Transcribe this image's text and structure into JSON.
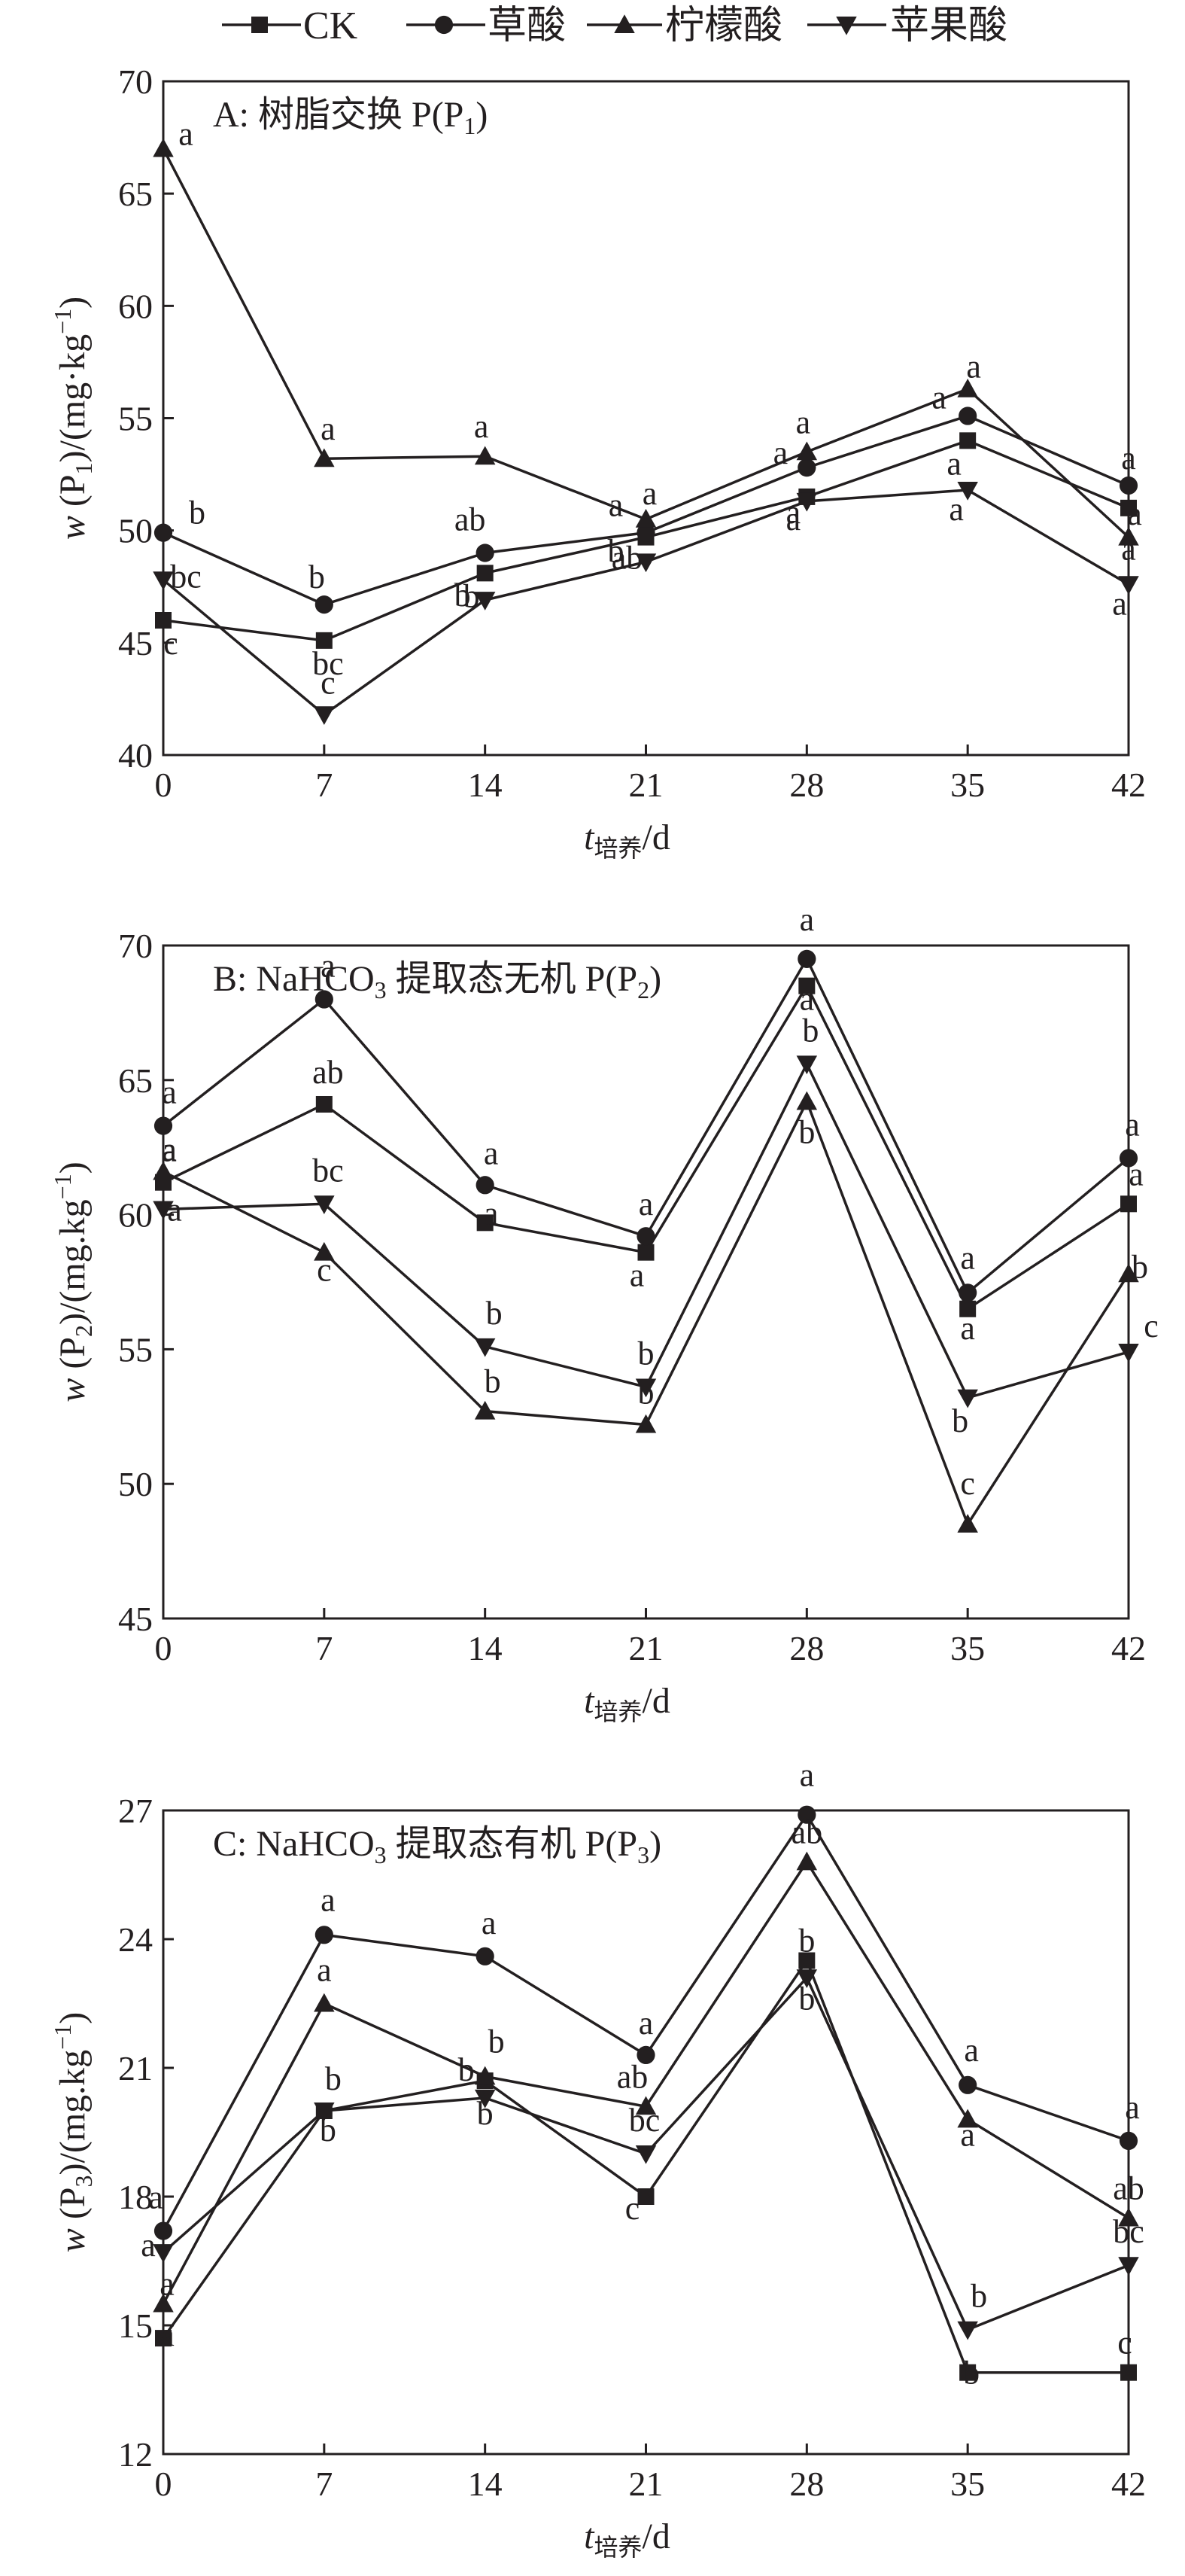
{
  "chart_data": [
    {
      "type": "line",
      "panel_id": "A",
      "title": "A: 树脂交换 P(P",
      "title_sub": "1",
      "title_end": ")",
      "ylabel": {
        "main": "w",
        "open": " (P",
        "sub": "1",
        "mid": ")/(mg·kg",
        "sup": "−1",
        "close": ")"
      },
      "xlabel": {
        "main": "t",
        "sub": "培养",
        "unit": "/d"
      },
      "x": [
        0,
        7,
        14,
        21,
        28,
        35,
        42
      ],
      "xlim": [
        0,
        42
      ],
      "ylim": [
        40,
        70
      ],
      "yticks": [
        40,
        45,
        50,
        55,
        60,
        65,
        70
      ],
      "series": [
        {
          "name": "CK",
          "marker": "square",
          "values": [
            46.0,
            45.1,
            48.1,
            49.7,
            51.5,
            54.0,
            51.0
          ],
          "labels": [
            "c",
            "bc",
            "b",
            "ab",
            "a",
            "a",
            "a"
          ]
        },
        {
          "name": "草酸",
          "marker": "circle",
          "values": [
            49.9,
            46.7,
            49.0,
            49.9,
            52.8,
            55.1,
            52.0
          ],
          "labels": [
            "b",
            "b",
            "ab",
            "a",
            "a",
            "a",
            "a"
          ]
        },
        {
          "name": "柠檬酸",
          "marker": "triangle-up",
          "values": [
            67.0,
            53.2,
            53.3,
            50.5,
            53.5,
            56.3,
            49.7
          ],
          "labels": [
            "a",
            "a",
            "a",
            "a",
            "a",
            "a",
            "a"
          ]
        },
        {
          "name": "苹果酸",
          "marker": "triangle-down",
          "values": [
            47.8,
            41.8,
            46.9,
            48.6,
            51.3,
            51.8,
            47.6
          ],
          "labels": [
            "bc",
            "c",
            "b",
            "b",
            "a",
            "a",
            "a"
          ]
        }
      ]
    },
    {
      "type": "line",
      "panel_id": "B",
      "title": "B: NaHCO",
      "title_sub": "3",
      "title_end": " 提取态无机 P(P",
      "title_sub2": "2",
      "title_end2": ")",
      "ylabel": {
        "main": "w",
        "open": " (P",
        "sub": "2",
        "mid": ")/(mg.kg",
        "sup": "−1",
        "close": ")"
      },
      "xlabel": {
        "main": "t",
        "sub": "培养",
        "unit": "/d"
      },
      "x": [
        0,
        7,
        14,
        21,
        28,
        35,
        42
      ],
      "xlim": [
        0,
        42
      ],
      "ylim": [
        45,
        70
      ],
      "yticks": [
        45,
        50,
        55,
        60,
        65,
        70
      ],
      "series": [
        {
          "name": "CK",
          "marker": "square",
          "values": [
            61.2,
            64.1,
            59.7,
            58.6,
            68.5,
            56.5,
            60.4
          ],
          "labels": [
            "a",
            "ab",
            "a",
            "a",
            "a",
            "a",
            "a"
          ]
        },
        {
          "name": "草酸",
          "marker": "circle",
          "values": [
            63.3,
            68.0,
            61.1,
            59.2,
            69.5,
            57.1,
            62.1
          ],
          "labels": [
            "a",
            "a",
            "a",
            "a",
            "a",
            "a",
            "a"
          ]
        },
        {
          "name": "柠檬酸",
          "marker": "triangle-up",
          "values": [
            61.6,
            58.6,
            52.7,
            52.2,
            64.2,
            48.5,
            57.8
          ],
          "labels": [
            "a",
            "c",
            "b",
            "b",
            "b",
            "c",
            "b"
          ]
        },
        {
          "name": "苹果酸",
          "marker": "triangle-down",
          "values": [
            60.2,
            60.4,
            55.1,
            53.6,
            65.6,
            53.2,
            54.9
          ],
          "labels": [
            "a",
            "bc",
            "b",
            "b",
            "b",
            "b",
            "c"
          ]
        }
      ]
    },
    {
      "type": "line",
      "panel_id": "C",
      "title": "C: NaHCO",
      "title_sub": "3",
      "title_end": " 提取态有机 P(P",
      "title_sub2": "3",
      "title_end2": ")",
      "ylabel": {
        "main": "w",
        "open": " (P",
        "sub": "3",
        "mid": ")/(mg.kg",
        "sup": "−1",
        "close": ")"
      },
      "xlabel": {
        "main": "t",
        "sub": "培养",
        "unit": "/d"
      },
      "x": [
        0,
        7,
        14,
        21,
        28,
        35,
        42
      ],
      "xlim": [
        0,
        42
      ],
      "ylim": [
        12,
        27
      ],
      "yticks": [
        12,
        15,
        18,
        21,
        24,
        27
      ],
      "series": [
        {
          "name": "CK",
          "marker": "square",
          "values": [
            14.7,
            20.0,
            20.7,
            18.0,
            23.5,
            13.9,
            13.9
          ],
          "labels": [
            "a",
            "b",
            "b",
            "c",
            "b",
            "b",
            "c"
          ]
        },
        {
          "name": "草酸",
          "marker": "circle",
          "values": [
            17.2,
            24.1,
            23.6,
            21.3,
            26.9,
            20.6,
            19.3
          ],
          "labels": [
            "a",
            "a",
            "a",
            "a",
            "a",
            "a",
            "a"
          ]
        },
        {
          "name": "柠檬酸",
          "marker": "triangle-up",
          "values": [
            15.5,
            22.5,
            20.8,
            20.1,
            25.8,
            19.8,
            17.5
          ],
          "labels": [
            "a",
            "a",
            "b",
            "ab",
            "ab",
            "a",
            "ab"
          ]
        },
        {
          "name": "苹果酸",
          "marker": "triangle-down",
          "values": [
            16.7,
            20.0,
            20.3,
            19.0,
            23.1,
            14.9,
            16.4
          ],
          "labels": [
            "a",
            "b",
            "b",
            "bc",
            "b",
            "b",
            "bc"
          ]
        }
      ]
    }
  ]
}
